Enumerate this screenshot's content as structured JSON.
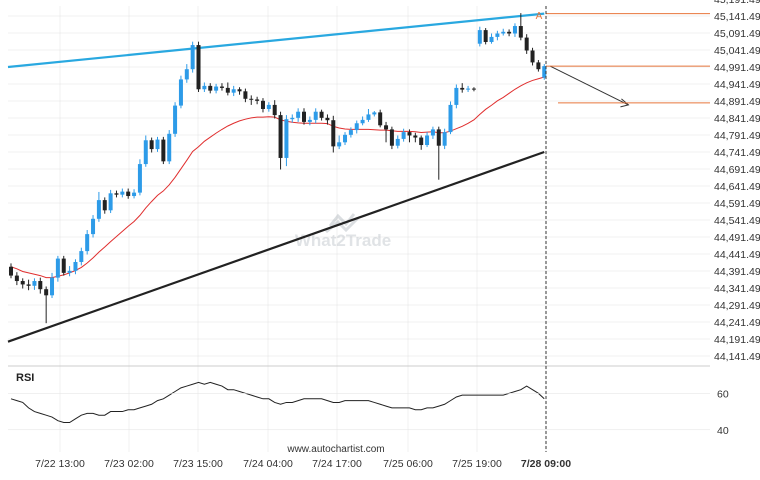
{
  "chart_data": {
    "type": "candlestick",
    "price_axis": {
      "ticks": [
        "45,191.4926",
        "45,141.4926",
        "45,091.4926",
        "45,041.4926",
        "44,991.4926",
        "44,941.4926",
        "44,891.4926",
        "44,841.4926",
        "44,791.4926",
        "44,741.4926",
        "44,691.4926",
        "44,641.4926",
        "44,591.4926",
        "44,541.4926",
        "44,491.4926",
        "44,441.4926",
        "44,391.4926",
        "44,341.4926",
        "44,291.4926",
        "44,241.4926",
        "44,191.4926",
        "44,141.4926"
      ],
      "range": [
        44141.4926,
        45191.4926
      ]
    },
    "time_axis": {
      "ticks": [
        "7/22 13:00",
        "7/23 02:00",
        "7/23 15:00",
        "7/24 04:00",
        "7/24 17:00",
        "7/25 06:00",
        "7/25 19:00",
        "7/28 09:00"
      ],
      "highlight": "7/28 09:00"
    },
    "candles": [
      {
        "o": 44404,
        "c": 44378,
        "h": 44414,
        "l": 44370
      },
      {
        "o": 44378,
        "c": 44362,
        "h": 44388,
        "l": 44350
      },
      {
        "o": 44362,
        "c": 44352,
        "h": 44370,
        "l": 44340
      },
      {
        "o": 44352,
        "c": 44348,
        "h": 44366,
        "l": 44335
      },
      {
        "o": 44348,
        "c": 44362,
        "h": 44370,
        "l": 44336
      },
      {
        "o": 44362,
        "c": 44338,
        "h": 44372,
        "l": 44325
      },
      {
        "o": 44338,
        "c": 44320,
        "h": 44346,
        "l": 44238
      },
      {
        "o": 44320,
        "c": 44372,
        "h": 44386,
        "l": 44312
      },
      {
        "o": 44372,
        "c": 44428,
        "h": 44436,
        "l": 44360
      },
      {
        "o": 44428,
        "c": 44386,
        "h": 44436,
        "l": 44378
      },
      {
        "o": 44386,
        "c": 44392,
        "h": 44406,
        "l": 44376
      },
      {
        "o": 44392,
        "c": 44418,
        "h": 44426,
        "l": 44382
      },
      {
        "o": 44418,
        "c": 44450,
        "h": 44460,
        "l": 44408
      },
      {
        "o": 44450,
        "c": 44500,
        "h": 44512,
        "l": 44440
      },
      {
        "o": 44500,
        "c": 44545,
        "h": 44556,
        "l": 44490
      },
      {
        "o": 44545,
        "c": 44600,
        "h": 44624,
        "l": 44536
      },
      {
        "o": 44600,
        "c": 44570,
        "h": 44608,
        "l": 44560
      },
      {
        "o": 44570,
        "c": 44620,
        "h": 44630,
        "l": 44562
      },
      {
        "o": 44620,
        "c": 44616,
        "h": 44628,
        "l": 44608
      },
      {
        "o": 44616,
        "c": 44625,
        "h": 44634,
        "l": 44608
      },
      {
        "o": 44625,
        "c": 44612,
        "h": 44634,
        "l": 44604
      },
      {
        "o": 44612,
        "c": 44622,
        "h": 44632,
        "l": 44605
      },
      {
        "o": 44622,
        "c": 44706,
        "h": 44720,
        "l": 44614
      },
      {
        "o": 44706,
        "c": 44776,
        "h": 44790,
        "l": 44698
      },
      {
        "o": 44776,
        "c": 44750,
        "h": 44784,
        "l": 44740
      },
      {
        "o": 44750,
        "c": 44778,
        "h": 44786,
        "l": 44742
      },
      {
        "o": 44778,
        "c": 44714,
        "h": 44786,
        "l": 44706
      },
      {
        "o": 44714,
        "c": 44795,
        "h": 44806,
        "l": 44706
      },
      {
        "o": 44795,
        "c": 44878,
        "h": 44888,
        "l": 44786
      },
      {
        "o": 44878,
        "c": 44955,
        "h": 44966,
        "l": 44870
      },
      {
        "o": 44955,
        "c": 44985,
        "h": 45000,
        "l": 44945
      },
      {
        "o": 44985,
        "c": 45056,
        "h": 45066,
        "l": 44975
      },
      {
        "o": 45056,
        "c": 44926,
        "h": 45066,
        "l": 44918
      },
      {
        "o": 44926,
        "c": 44936,
        "h": 44946,
        "l": 44918
      },
      {
        "o": 44936,
        "c": 44922,
        "h": 44944,
        "l": 44914
      },
      {
        "o": 44922,
        "c": 44934,
        "h": 44942,
        "l": 44914
      },
      {
        "o": 44934,
        "c": 44930,
        "h": 44944,
        "l": 44922
      },
      {
        "o": 44930,
        "c": 44916,
        "h": 44946,
        "l": 44908
      },
      {
        "o": 44916,
        "c": 44926,
        "h": 44936,
        "l": 44906
      },
      {
        "o": 44926,
        "c": 44920,
        "h": 44932,
        "l": 44910
      },
      {
        "o": 44920,
        "c": 44898,
        "h": 44928,
        "l": 44888
      },
      {
        "o": 44898,
        "c": 44896,
        "h": 44908,
        "l": 44880
      },
      {
        "o": 44896,
        "c": 44892,
        "h": 44904,
        "l": 44882
      },
      {
        "o": 44892,
        "c": 44868,
        "h": 44900,
        "l": 44858
      },
      {
        "o": 44868,
        "c": 44880,
        "h": 44888,
        "l": 44860
      },
      {
        "o": 44880,
        "c": 44850,
        "h": 44894,
        "l": 44840
      },
      {
        "o": 44850,
        "c": 44724,
        "h": 44860,
        "l": 44690
      },
      {
        "o": 44724,
        "c": 44838,
        "h": 44850,
        "l": 44700
      },
      {
        "o": 44838,
        "c": 44842,
        "h": 44852,
        "l": 44828
      },
      {
        "o": 44842,
        "c": 44860,
        "h": 44870,
        "l": 44830
      },
      {
        "o": 44860,
        "c": 44830,
        "h": 44870,
        "l": 44822
      },
      {
        "o": 44830,
        "c": 44836,
        "h": 44846,
        "l": 44820
      },
      {
        "o": 44836,
        "c": 44860,
        "h": 44870,
        "l": 44826
      },
      {
        "o": 44860,
        "c": 44842,
        "h": 44866,
        "l": 44834
      },
      {
        "o": 44842,
        "c": 44835,
        "h": 44852,
        "l": 44822
      },
      {
        "o": 44835,
        "c": 44758,
        "h": 44848,
        "l": 44740
      },
      {
        "o": 44758,
        "c": 44770,
        "h": 44790,
        "l": 44750
      },
      {
        "o": 44770,
        "c": 44792,
        "h": 44800,
        "l": 44762
      },
      {
        "o": 44792,
        "c": 44806,
        "h": 44814,
        "l": 44784
      },
      {
        "o": 44806,
        "c": 44826,
        "h": 44834,
        "l": 44796
      },
      {
        "o": 44826,
        "c": 44836,
        "h": 44846,
        "l": 44820
      },
      {
        "o": 44836,
        "c": 44852,
        "h": 44868,
        "l": 44830
      },
      {
        "o": 44852,
        "c": 44858,
        "h": 44862,
        "l": 44846
      },
      {
        "o": 44858,
        "c": 44820,
        "h": 44866,
        "l": 44814
      },
      {
        "o": 44820,
        "c": 44808,
        "h": 44830,
        "l": 44770
      },
      {
        "o": 44808,
        "c": 44760,
        "h": 44816,
        "l": 44750
      },
      {
        "o": 44760,
        "c": 44780,
        "h": 44790,
        "l": 44752
      },
      {
        "o": 44780,
        "c": 44800,
        "h": 44810,
        "l": 44772
      },
      {
        "o": 44800,
        "c": 44790,
        "h": 44808,
        "l": 44770
      },
      {
        "o": 44790,
        "c": 44784,
        "h": 44798,
        "l": 44770
      },
      {
        "o": 44784,
        "c": 44762,
        "h": 44790,
        "l": 44748
      },
      {
        "o": 44762,
        "c": 44790,
        "h": 44800,
        "l": 44756
      },
      {
        "o": 44790,
        "c": 44808,
        "h": 44816,
        "l": 44780
      },
      {
        "o": 44808,
        "c": 44760,
        "h": 44816,
        "l": 44660
      },
      {
        "o": 44760,
        "c": 44800,
        "h": 44810,
        "l": 44750
      },
      {
        "o": 44800,
        "c": 44880,
        "h": 44890,
        "l": 44794
      },
      {
        "o": 44880,
        "c": 44930,
        "h": 44940,
        "l": 44870
      },
      {
        "o": 44930,
        "c": 44925,
        "h": 44944,
        "l": 44916
      },
      {
        "o": 44925,
        "c": 44928,
        "h": 44936,
        "l": 44918
      },
      {
        "o": 44928,
        "c": 44926,
        "h": 44932,
        "l": 44920
      },
      {
        "o": 45060,
        "c": 45100,
        "h": 45110,
        "l": 45052
      },
      {
        "o": 45100,
        "c": 45065,
        "h": 45106,
        "l": 45058
      },
      {
        "o": 45065,
        "c": 45080,
        "h": 45090,
        "l": 45060
      },
      {
        "o": 45080,
        "c": 45090,
        "h": 45098,
        "l": 45070
      },
      {
        "o": 45090,
        "c": 45095,
        "h": 45104,
        "l": 45084
      },
      {
        "o": 45095,
        "c": 45090,
        "h": 45102,
        "l": 45082
      },
      {
        "o": 45090,
        "c": 45112,
        "h": 45120,
        "l": 45080
      },
      {
        "o": 45112,
        "c": 45078,
        "h": 45150,
        "l": 45070
      },
      {
        "o": 45078,
        "c": 45040,
        "h": 45088,
        "l": 45030
      },
      {
        "o": 45040,
        "c": 45005,
        "h": 45048,
        "l": 44996
      },
      {
        "o": 45005,
        "c": 44985,
        "h": 45012,
        "l": 44978
      },
      {
        "o": 44960,
        "c": 44994,
        "h": 45000,
        "l": 44954
      }
    ],
    "moving_average": [
      44404,
      44398,
      44390,
      44386,
      44382,
      44378,
      44372,
      44372,
      44376,
      44380,
      44386,
      44393,
      44402,
      44415,
      44430,
      44447,
      44462,
      44478,
      44493,
      44508,
      44523,
      44537,
      44555,
      44577,
      44596,
      44614,
      44627,
      44645,
      44667,
      44692,
      44717,
      44743,
      44757,
      44773,
      44785,
      44797,
      44808,
      44818,
      44826,
      44833,
      44838,
      44842,
      44844,
      44844,
      44845,
      44844,
      44836,
      44832,
      44829,
      44827,
      44826,
      44826,
      44826,
      44826,
      44825,
      44817,
      44812,
      44809,
      44808,
      44808,
      44808,
      44808,
      44807,
      44806,
      44806,
      44804,
      44802,
      44802,
      44802,
      44801,
      44799,
      44800,
      44801,
      44798,
      44798,
      44803,
      44810,
      44817,
      44826,
      44836,
      44852,
      44867,
      44879,
      44892,
      44902,
      44914,
      44926,
      44936,
      44945,
      44952,
      44957,
      44962
    ],
    "resistance_line": {
      "from": [
        0,
        44991.5
      ],
      "to": [
        91,
        45148.5
      ]
    },
    "support_line": {
      "from": [
        0,
        44183.5
      ],
      "to": [
        91,
        44741.5
      ]
    },
    "projection": {
      "from": [
        91,
        44994
      ],
      "to": [
        104,
        44880
      ]
    },
    "levels": [
      {
        "value": 45148.5,
        "color": "#e8763c"
      },
      {
        "value": 44994,
        "color": "#e8763c"
      },
      {
        "value": 44886,
        "color": "#e8763c"
      }
    ],
    "pattern_label": "A",
    "rsi": {
      "label": "RSI",
      "ticks": [
        "60",
        "40"
      ],
      "range": [
        30,
        75
      ],
      "values": [
        57,
        56,
        55,
        52,
        50,
        49,
        48,
        47,
        45,
        44,
        44,
        46,
        48,
        49,
        49,
        48,
        48,
        50,
        50,
        50,
        51,
        51,
        52,
        53,
        54,
        56,
        57,
        59,
        61,
        63,
        64,
        65,
        66,
        65,
        66,
        65,
        64,
        62,
        62,
        61,
        60,
        59,
        58,
        57,
        57,
        55,
        54,
        55,
        55,
        56,
        57,
        57,
        57,
        57,
        56,
        55,
        55,
        56,
        56,
        56,
        56,
        56,
        55,
        54,
        53,
        52,
        52,
        52,
        52,
        51,
        51,
        52,
        52,
        53,
        54,
        56,
        58,
        59,
        59,
        59,
        59,
        59,
        59,
        59,
        59,
        60,
        61,
        62,
        64,
        62,
        60,
        57
      ]
    },
    "colors": {
      "up": "#2d9be8",
      "down": "#222222",
      "resistance": "#29a8e0",
      "support": "#222222",
      "moving_average": "#e02e2e",
      "levels": "#e8763c",
      "grid": "#e2e2e2",
      "cursor": "#333333"
    }
  },
  "footer": {
    "site_url": "www.autochartist.com"
  }
}
